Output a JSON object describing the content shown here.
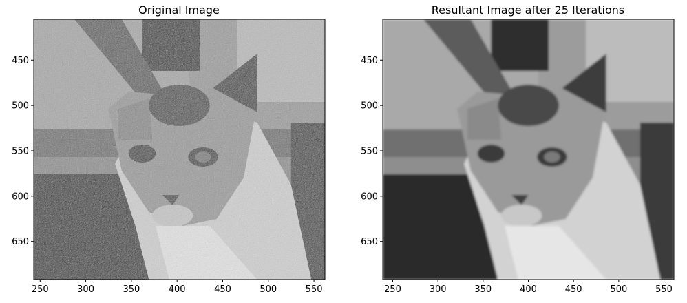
{
  "panels": [
    {
      "title": "Original Image",
      "image": "noisy-grayscale-cat-photo",
      "xticks": [
        250,
        300,
        350,
        400,
        450,
        500,
        550
      ],
      "yticks": [
        450,
        500,
        550,
        600,
        650
      ],
      "xlim": [
        243,
        562
      ],
      "ylim": [
        692,
        405
      ]
    },
    {
      "title": "Resultant Image after 25 Iterations",
      "image": "denoised-grayscale-cat-photo",
      "xticks": [
        250,
        300,
        350,
        400,
        450,
        500,
        550
      ],
      "yticks": [
        450,
        500,
        550,
        600,
        650
      ],
      "xlim": [
        239,
        561
      ],
      "ylim": [
        692,
        405
      ]
    }
  ]
}
